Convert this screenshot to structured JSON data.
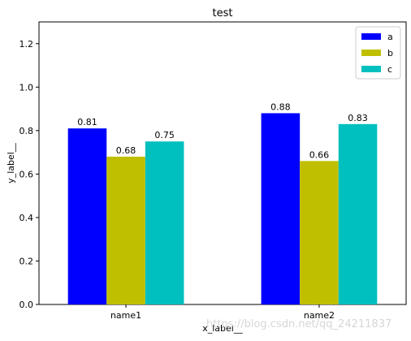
{
  "chart_data": {
    "type": "bar",
    "title": "test",
    "xlabel": "x_label__",
    "ylabel": "y_label__",
    "categories": [
      "name1",
      "name2"
    ],
    "series": [
      {
        "name": "a",
        "values": [
          0.81,
          0.88
        ],
        "color": "#0000ff"
      },
      {
        "name": "b",
        "values": [
          0.68,
          0.66
        ],
        "color": "#bfbf00"
      },
      {
        "name": "c",
        "values": [
          0.75,
          0.83
        ],
        "color": "#00bfbf"
      }
    ],
    "ylim": [
      0,
      1.3
    ],
    "yticks": [
      0.0,
      0.2,
      0.4,
      0.6,
      0.8,
      1.0,
      1.2
    ],
    "ytick_labels": [
      "0.0",
      "0.2",
      "0.4",
      "0.6",
      "0.8",
      "1.0",
      "1.2"
    ],
    "grid": false,
    "legend_position": "top-right"
  },
  "watermark": "https://blog.csdn.net/qq_24211837"
}
